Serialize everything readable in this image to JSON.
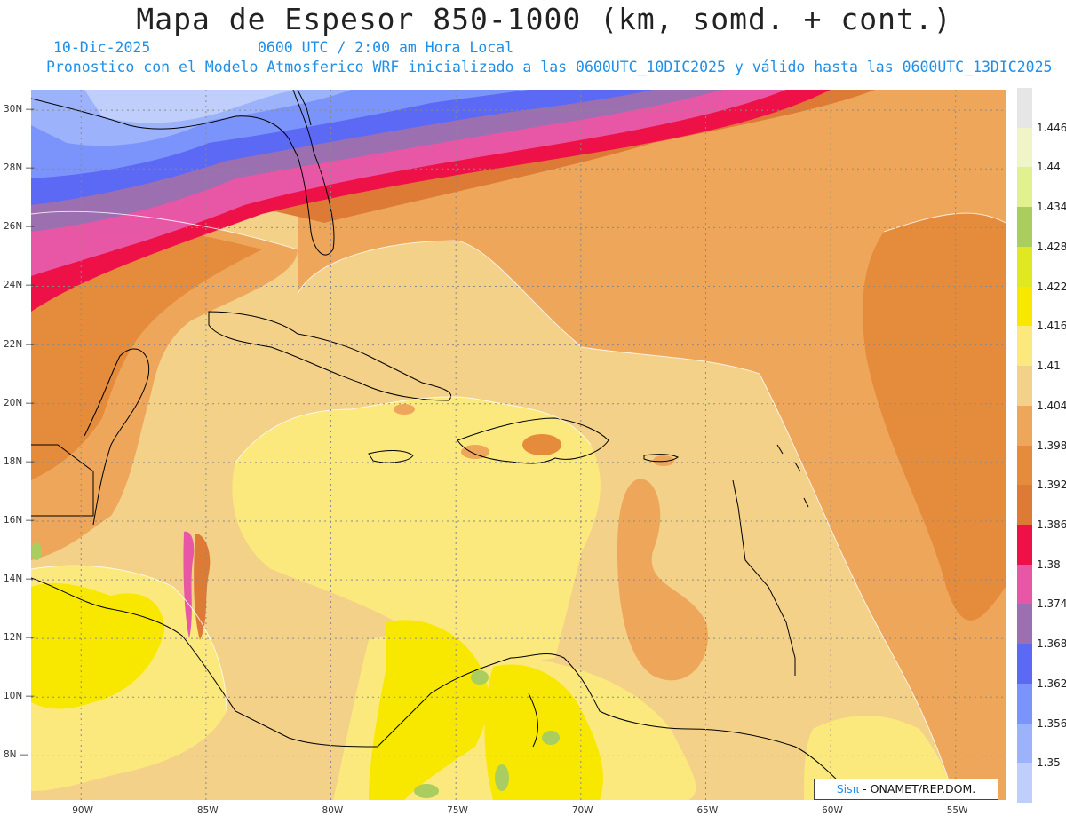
{
  "header": {
    "title": "Mapa de Espesor 850-1000 (km, somd. + cont.)",
    "date": "10-Dic-2025",
    "time": "0600 UTC / 2:00 am Hora Local",
    "description": "Pronostico con el Modelo Atmosferico WRF inicializado a las 0600UTC_10DIC2025 y válido hasta las  0600UTC_13DIC2025"
  },
  "map": {
    "lon_range": [
      -92,
      -53
    ],
    "lat_range": [
      6.5,
      30.7
    ],
    "lat_labels": [
      "30N",
      "28N",
      "26N",
      "24N",
      "22N",
      "20N",
      "18N",
      "16N",
      "14N",
      "12N",
      "10N",
      "8N"
    ],
    "lon_labels": [
      "90W",
      "85W",
      "80W",
      "75W",
      "70W",
      "65W",
      "60W",
      "55W"
    ]
  },
  "colorbar": {
    "levels": [
      "1.446",
      "1.44",
      "1.434",
      "1.428",
      "1.422",
      "1.416",
      "1.41",
      "1.404",
      "1.398",
      "1.392",
      "1.386",
      "1.38",
      "1.374",
      "1.368",
      "1.362",
      "1.356",
      "1.35"
    ],
    "colors": [
      "#e6e6e6",
      "#eff5c7",
      "#e1f18f",
      "#a9cd5f",
      "#dfe820",
      "#f8e800",
      "#fbe97e",
      "#f4d188",
      "#eda65a",
      "#e48c3c",
      "#dd7a35",
      "#ee1147",
      "#e857a5",
      "#9b6fb0",
      "#5c69f4",
      "#7b94fc",
      "#9cb3fb",
      "#bfcefa"
    ]
  },
  "logo": {
    "brand": "Sisπ",
    "org": "- ONAMET/REP.DOM."
  }
}
